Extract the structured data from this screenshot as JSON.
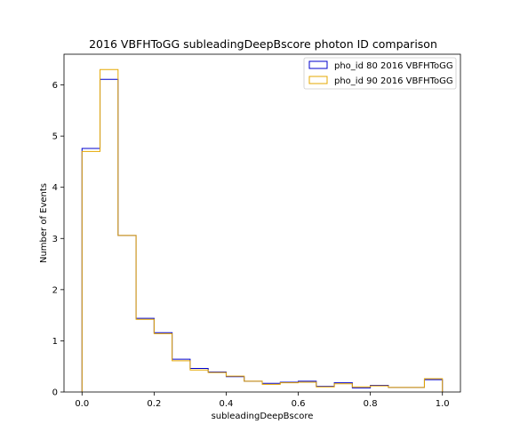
{
  "chart_data": {
    "type": "histogram",
    "title": "2016 VBFHToGG subleadingDeepBscore photon ID comparison",
    "xlabel": "subleadingDeepBscore",
    "ylabel": "Number of Events",
    "xlim": [
      -0.05,
      1.05
    ],
    "ylim": [
      0,
      6.6
    ],
    "xticks": [
      0.0,
      0.2,
      0.4,
      0.6,
      0.8,
      1.0
    ],
    "xtick_labels": [
      "0.0",
      "0.2",
      "0.4",
      "0.6",
      "0.8",
      "1.0"
    ],
    "yticks": [
      0,
      1,
      2,
      3,
      4,
      5,
      6
    ],
    "ytick_labels": [
      "0",
      "1",
      "2",
      "3",
      "4",
      "5",
      "6"
    ],
    "bin_edges": [
      0.0,
      0.05,
      0.1,
      0.15,
      0.2,
      0.25,
      0.3,
      0.35,
      0.4,
      0.45,
      0.5,
      0.55,
      0.6,
      0.65,
      0.7,
      0.75,
      0.8,
      0.85,
      0.9,
      0.95,
      1.0
    ],
    "legend_position": "top-right",
    "grid": false,
    "series": [
      {
        "name": "pho_id 80 2016 VBFHToGG",
        "color": "#0000cc",
        "values": [
          4.76,
          6.11,
          3.06,
          1.44,
          1.16,
          0.64,
          0.46,
          0.39,
          0.3,
          0.21,
          0.17,
          0.19,
          0.21,
          0.11,
          0.18,
          0.08,
          0.13,
          0.09,
          0.09,
          0.24
        ]
      },
      {
        "name": "pho_id 90 2016 VBFHToGG",
        "color": "#e6a800",
        "values": [
          4.7,
          6.3,
          3.06,
          1.42,
          1.14,
          0.61,
          0.43,
          0.38,
          0.31,
          0.21,
          0.15,
          0.18,
          0.19,
          0.1,
          0.16,
          0.1,
          0.12,
          0.09,
          0.09,
          0.26
        ]
      }
    ]
  }
}
